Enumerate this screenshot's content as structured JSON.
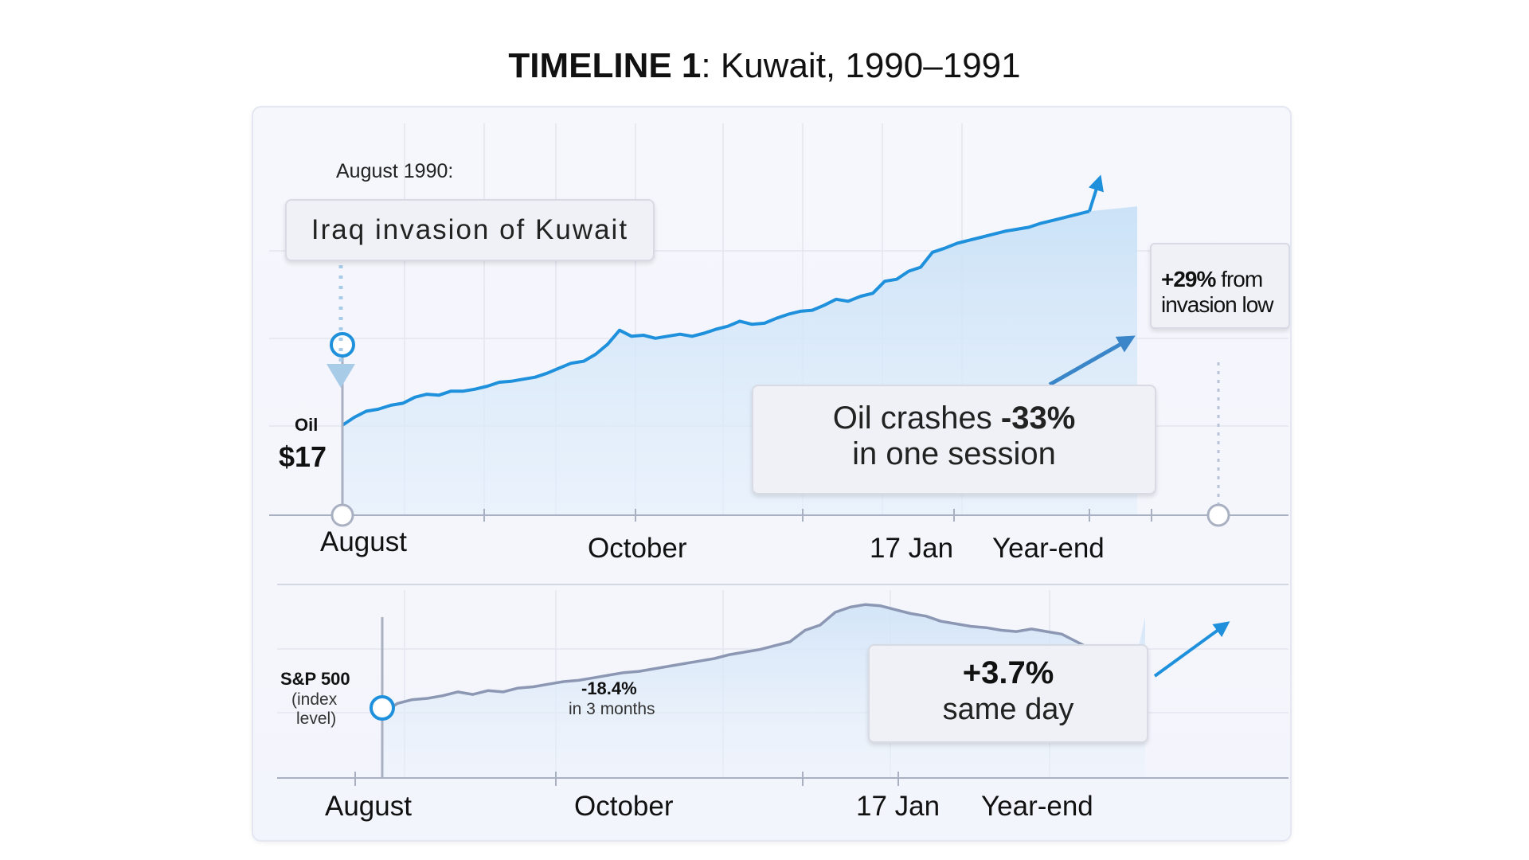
{
  "title": {
    "bold": "TIMELINE 1",
    "rest": ": Kuwait, 1990–1991"
  },
  "colors": {
    "line": "#1e90dc",
    "fill": "#cfe5f8",
    "sp_line": "#8c97b3",
    "sp_fill": "#d7e8f8",
    "grid": "#e3e6ef",
    "axis": "#a9b0c2",
    "card_bg": "#eff1f6"
  },
  "chart_data": [
    {
      "type": "line",
      "title": "",
      "series": [
        {
          "name": "Oil",
          "x": [
            0.0,
            0.016,
            0.032,
            0.048,
            0.065,
            0.081,
            0.097,
            0.113,
            0.129,
            0.145,
            0.161,
            0.177,
            0.194,
            0.21,
            0.226,
            0.242,
            0.258,
            0.274,
            0.29,
            0.306,
            0.323,
            0.339,
            0.355,
            0.371,
            0.387,
            0.403,
            0.419,
            0.435,
            0.452,
            0.468,
            0.484,
            0.5,
            0.516,
            0.532,
            0.548,
            0.565,
            0.581,
            0.597,
            0.613,
            0.629,
            0.645,
            0.661,
            0.677,
            0.694,
            0.71,
            0.726,
            0.742,
            0.758,
            0.774,
            0.79,
            0.806,
            0.823,
            0.839,
            0.855,
            0.871,
            0.887,
            0.903,
            0.919,
            0.935,
            0.952,
            0.968,
            0.984,
            1.0
          ],
          "values": [
            17.0,
            17.8,
            18.4,
            18.6,
            19.0,
            19.2,
            19.8,
            20.1,
            20.0,
            20.4,
            20.4,
            20.6,
            20.9,
            21.3,
            21.4,
            21.6,
            21.8,
            22.2,
            22.7,
            23.2,
            23.4,
            24.1,
            25.1,
            26.5,
            25.9,
            26.0,
            25.7,
            25.9,
            26.1,
            25.9,
            26.2,
            26.6,
            26.9,
            27.4,
            27.1,
            27.2,
            27.7,
            28.1,
            28.4,
            28.5,
            29.0,
            29.6,
            29.4,
            29.9,
            30.2,
            31.4,
            31.6,
            32.4,
            32.8,
            34.3,
            34.7,
            35.2,
            35.5,
            35.8,
            36.1,
            36.4,
            36.6,
            36.8,
            37.2,
            37.5,
            37.8,
            38.1,
            38.4
          ]
        }
      ],
      "x_ticks": [
        {
          "x": 0.0,
          "label": "August"
        },
        {
          "x": 0.4,
          "label": "October"
        },
        {
          "x": 0.775,
          "label": "17 Jan"
        },
        {
          "x": 1.0,
          "label": "Year-end"
        }
      ],
      "ylim": [
        8,
        44
      ],
      "grid": true
    },
    {
      "type": "line",
      "title": "",
      "series": [
        {
          "name": "S&P 500",
          "x": [
            0.0,
            0.02,
            0.04,
            0.06,
            0.08,
            0.1,
            0.12,
            0.14,
            0.16,
            0.18,
            0.2,
            0.22,
            0.24,
            0.26,
            0.28,
            0.3,
            0.32,
            0.34,
            0.36,
            0.38,
            0.4,
            0.42,
            0.44,
            0.46,
            0.48,
            0.5,
            0.52,
            0.54,
            0.56,
            0.58,
            0.6,
            0.62,
            0.64,
            0.66,
            0.68,
            0.7,
            0.72,
            0.74,
            0.76,
            0.78,
            0.8,
            0.82,
            0.84,
            0.86,
            0.88,
            0.9,
            0.92,
            0.94,
            0.96,
            0.98,
            1.0
          ],
          "values": [
            310,
            318,
            321,
            322,
            324,
            327,
            325,
            328,
            327,
            330,
            331,
            333,
            335,
            336,
            338,
            340,
            342,
            343,
            345,
            347,
            349,
            351,
            353,
            356,
            358,
            360,
            363,
            366,
            375,
            379,
            389,
            393,
            395,
            394,
            391,
            388,
            386,
            382,
            380,
            378,
            377,
            375,
            374,
            376,
            374,
            372,
            366,
            360,
            358,
            356,
            357
          ]
        }
      ],
      "x_ticks": [
        {
          "x": 0.0,
          "label": "August"
        },
        {
          "x": 0.32,
          "label": "October"
        },
        {
          "x": 0.71,
          "label": "17 Jan"
        },
        {
          "x": 0.93,
          "label": "Year-end"
        }
      ],
      "ylim": [
        260,
        410
      ],
      "grid": true
    }
  ],
  "top": {
    "date_label": "August 1990:",
    "event_card": "Iraq invasion of Kuwait",
    "oil_label": "Oil",
    "oil_price": "$17",
    "crash_card": {
      "line1_a": "Oil crashes ",
      "line1_b": "-33%",
      "line2": "in one session"
    },
    "gain_card": {
      "bold": "+29%",
      "rest": " from",
      "line2": "invasion low"
    },
    "x_labels": [
      "August",
      "October",
      "17 Jan",
      "Year-end"
    ]
  },
  "bottom": {
    "sp_label": "S&P 500",
    "sp_sub1": "(index",
    "sp_sub2": "level)",
    "drop_value": "-18.4%",
    "drop_caption": "in 3 months",
    "gain_card": {
      "line1": "+3.7%",
      "line2": "same day"
    },
    "x_labels": [
      "August",
      "October",
      "17 Jan",
      "Year-end"
    ]
  }
}
